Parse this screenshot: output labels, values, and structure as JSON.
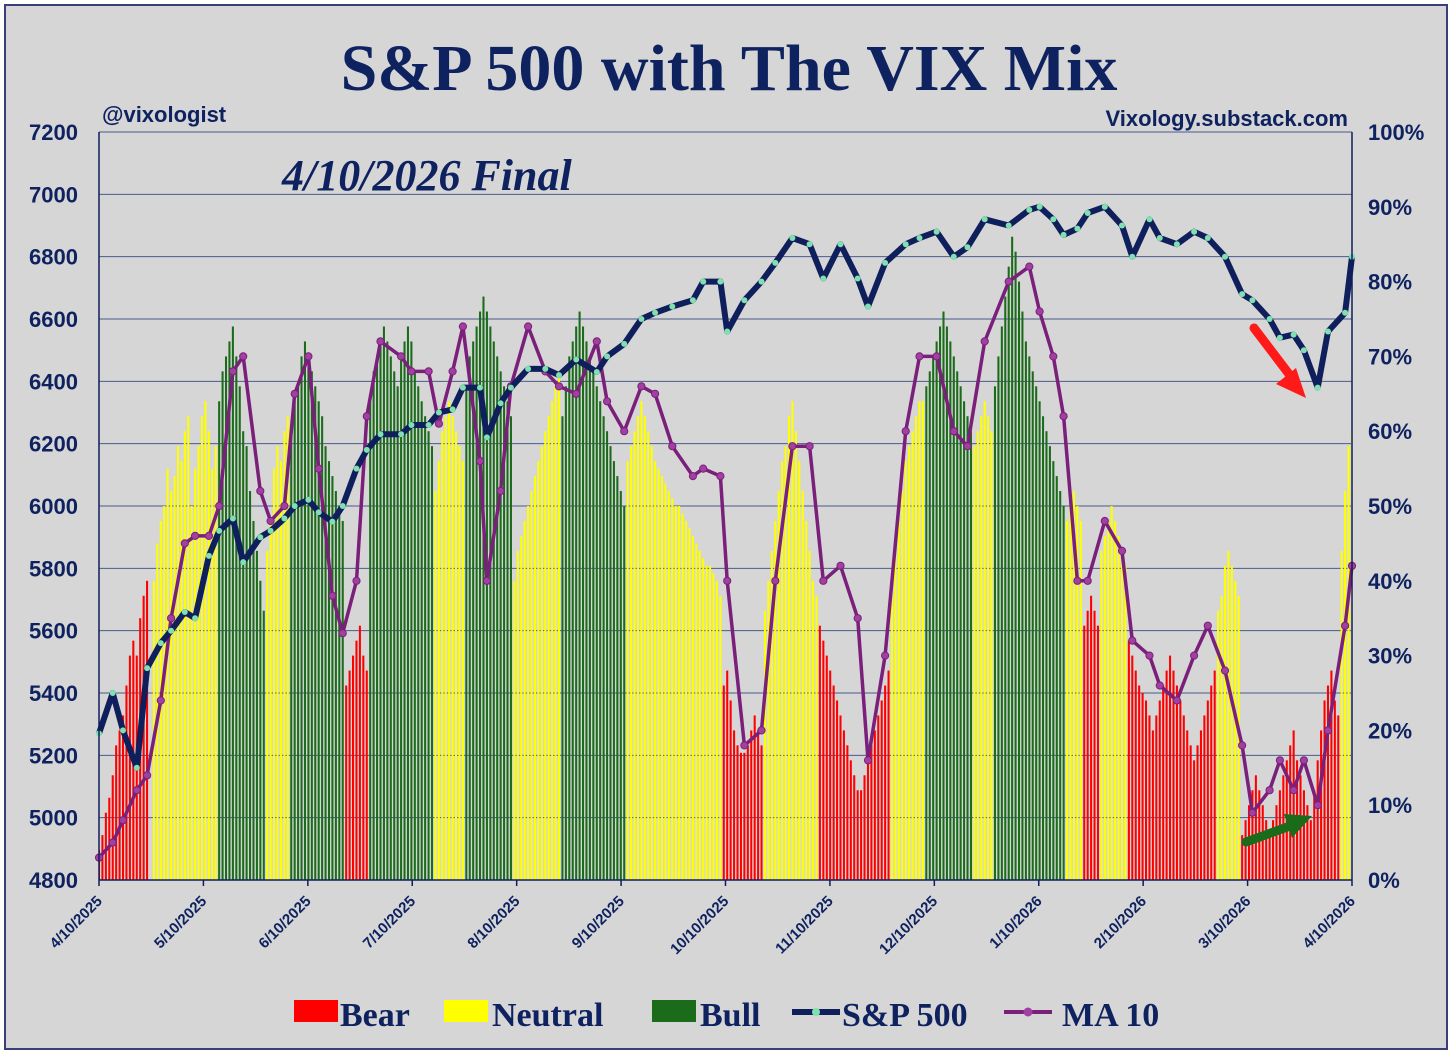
{
  "chart_data": {
    "type": "bar+line",
    "title": "S&P 500 with The VIX Mix",
    "subtitle": "4/10/2026 Final",
    "handle": "@vixologist",
    "website": "Vixology.substack.com",
    "y_left": {
      "ticks": [
        4800,
        5000,
        5200,
        5400,
        5600,
        5800,
        6000,
        6200,
        6400,
        6600,
        6800,
        7000,
        7200
      ],
      "ylim": [
        4800,
        7200
      ]
    },
    "y_right": {
      "ticks": [
        "0%",
        "10%",
        "20%",
        "30%",
        "40%",
        "50%",
        "60%",
        "70%",
        "80%",
        "90%",
        "100%"
      ],
      "ylim": [
        0,
        100
      ]
    },
    "x_ticks": [
      "4/10/2025",
      "5/10/2025",
      "6/10/2025",
      "7/10/2025",
      "8/10/2025",
      "9/10/2025",
      "10/10/2025",
      "11/10/2025",
      "12/10/2025",
      "1/10/2026",
      "2/10/2026",
      "3/10/2026",
      "4/10/2026"
    ],
    "x_range": [
      "2025-04-10",
      "2026-04-10"
    ],
    "grid": true,
    "legend": [
      {
        "name": "Bear",
        "color": "#ff0000",
        "kind": "bar"
      },
      {
        "name": "Neutral",
        "color": "#ffff00",
        "kind": "bar"
      },
      {
        "name": "Bull",
        "color": "#1a6b1a",
        "kind": "bar"
      },
      {
        "name": "S&P 500",
        "color": "#0f1f5c",
        "kind": "line"
      },
      {
        "name": "MA 10",
        "color": "#7a1f7a",
        "kind": "line"
      }
    ],
    "colors": {
      "bear": "#ff0000",
      "neutral": "#ffff00",
      "bull": "#1a6b1a",
      "sp500": "#0f1f5c",
      "sp500_marker": "#7fe0b0",
      "ma10": "#7a1f7a",
      "ma10_marker": "#a040a0",
      "annotation_red": "#ff1a1a",
      "annotation_green": "#1a6b1a"
    },
    "sp500": {
      "dates": [
        "2025-04-10",
        "2025-04-14",
        "2025-04-17",
        "2025-04-21",
        "2025-04-24",
        "2025-04-28",
        "2025-05-01",
        "2025-05-05",
        "2025-05-08",
        "2025-05-12",
        "2025-05-15",
        "2025-05-19",
        "2025-05-22",
        "2025-05-27",
        "2025-05-30",
        "2025-06-03",
        "2025-06-06",
        "2025-06-10",
        "2025-06-13",
        "2025-06-17",
        "2025-06-20",
        "2025-06-24",
        "2025-06-27",
        "2025-07-01",
        "2025-07-07",
        "2025-07-10",
        "2025-07-15",
        "2025-07-18",
        "2025-07-22",
        "2025-07-25",
        "2025-07-30",
        "2025-08-01",
        "2025-08-05",
        "2025-08-08",
        "2025-08-13",
        "2025-08-18",
        "2025-08-22",
        "2025-08-27",
        "2025-09-02",
        "2025-09-05",
        "2025-09-10",
        "2025-09-15",
        "2025-09-19",
        "2025-09-24",
        "2025-09-30",
        "2025-10-03",
        "2025-10-08",
        "2025-10-10",
        "2025-10-15",
        "2025-10-20",
        "2025-10-24",
        "2025-10-29",
        "2025-11-03",
        "2025-11-07",
        "2025-11-12",
        "2025-11-17",
        "2025-11-20",
        "2025-11-25",
        "2025-12-01",
        "2025-12-05",
        "2025-12-10",
        "2025-12-15",
        "2025-12-19",
        "2025-12-24",
        "2025-12-31",
        "2026-01-06",
        "2026-01-09",
        "2026-01-13",
        "2026-01-16",
        "2026-01-20",
        "2026-01-23",
        "2026-01-28",
        "2026-02-02",
        "2026-02-05",
        "2026-02-10",
        "2026-02-13",
        "2026-02-18",
        "2026-02-23",
        "2026-02-27",
        "2026-03-04",
        "2026-03-09",
        "2026-03-12",
        "2026-03-17",
        "2026-03-20",
        "2026-03-24",
        "2026-03-27",
        "2026-03-31",
        "2026-04-03",
        "2026-04-08",
        "2026-04-10"
      ],
      "values": [
        5270,
        5400,
        5280,
        5160,
        5480,
        5560,
        5600,
        5660,
        5640,
        5840,
        5920,
        5960,
        5820,
        5900,
        5920,
        5960,
        6000,
        6020,
        5980,
        5950,
        6000,
        6120,
        6180,
        6230,
        6230,
        6260,
        6260,
        6300,
        6310,
        6380,
        6380,
        6220,
        6330,
        6380,
        6440,
        6440,
        6420,
        6470,
        6430,
        6480,
        6520,
        6600,
        6620,
        6640,
        6660,
        6720,
        6720,
        6560,
        6660,
        6720,
        6780,
        6860,
        6840,
        6730,
        6840,
        6730,
        6640,
        6780,
        6840,
        6860,
        6880,
        6800,
        6830,
        6920,
        6900,
        6950,
        6960,
        6920,
        6870,
        6890,
        6940,
        6960,
        6900,
        6800,
        6920,
        6860,
        6840,
        6880,
        6860,
        6800,
        6680,
        6660,
        6600,
        6540,
        6550,
        6500,
        6380,
        6560,
        6620,
        6800
      ]
    },
    "ma10": {
      "dates": [
        "2025-04-10",
        "2025-04-14",
        "2025-04-17",
        "2025-04-21",
        "2025-04-24",
        "2025-04-28",
        "2025-05-01",
        "2025-05-05",
        "2025-05-08",
        "2025-05-12",
        "2025-05-15",
        "2025-05-19",
        "2025-05-22",
        "2025-05-27",
        "2025-05-30",
        "2025-06-03",
        "2025-06-06",
        "2025-06-10",
        "2025-06-13",
        "2025-06-17",
        "2025-06-20",
        "2025-06-24",
        "2025-06-27",
        "2025-07-01",
        "2025-07-07",
        "2025-07-10",
        "2025-07-15",
        "2025-07-18",
        "2025-07-22",
        "2025-07-25",
        "2025-07-30",
        "2025-08-01",
        "2025-08-05",
        "2025-08-08",
        "2025-08-13",
        "2025-08-18",
        "2025-08-22",
        "2025-08-27",
        "2025-09-02",
        "2025-09-05",
        "2025-09-10",
        "2025-09-15",
        "2025-09-19",
        "2025-09-24",
        "2025-09-30",
        "2025-10-03",
        "2025-10-08",
        "2025-10-10",
        "2025-10-15",
        "2025-10-20",
        "2025-10-24",
        "2025-10-29",
        "2025-11-03",
        "2025-11-07",
        "2025-11-12",
        "2025-11-17",
        "2025-11-20",
        "2025-11-25",
        "2025-12-01",
        "2025-12-05",
        "2025-12-10",
        "2025-12-15",
        "2025-12-19",
        "2025-12-24",
        "2025-12-31",
        "2026-01-06",
        "2026-01-09",
        "2026-01-13",
        "2026-01-16",
        "2026-01-20",
        "2026-01-23",
        "2026-01-28",
        "2026-02-02",
        "2026-02-05",
        "2026-02-10",
        "2026-02-13",
        "2026-02-18",
        "2026-02-23",
        "2026-02-27",
        "2026-03-04",
        "2026-03-09",
        "2026-03-12",
        "2026-03-17",
        "2026-03-20",
        "2026-03-24",
        "2026-03-27",
        "2026-03-31",
        "2026-04-03",
        "2026-04-08",
        "2026-04-10"
      ],
      "values": [
        3,
        5,
        8,
        12,
        14,
        24,
        35,
        45,
        46,
        46,
        50,
        68,
        70,
        52,
        48,
        50,
        65,
        70,
        55,
        38,
        33,
        40,
        62,
        72,
        70,
        68,
        68,
        61,
        68,
        74,
        56,
        40,
        52,
        66,
        74,
        68,
        66,
        65,
        72,
        64,
        60,
        66,
        65,
        58,
        54,
        55,
        54,
        40,
        18,
        20,
        40,
        58,
        58,
        40,
        42,
        35,
        16,
        30,
        60,
        70,
        70,
        60,
        58,
        72,
        80,
        82,
        76,
        70,
        62,
        40,
        40,
        48,
        44,
        32,
        30,
        26,
        24,
        30,
        34,
        28,
        18,
        9,
        12,
        16,
        12,
        16,
        10,
        20,
        34,
        42
      ]
    },
    "regime_bars": {
      "categories": [
        "Bear",
        "Neutral",
        "Bull"
      ],
      "segments": [
        {
          "start": "2025-04-10",
          "end": "2025-04-25",
          "regime": "Bear",
          "values": [
            4,
            6,
            9,
            11,
            14,
            18,
            20,
            22,
            26,
            30,
            32,
            30,
            35,
            38,
            40
          ]
        },
        {
          "start": "2025-04-26",
          "end": "2025-05-14",
          "regime": "Neutral",
          "values": [
            40,
            45,
            48,
            50,
            55,
            52,
            54,
            58,
            56,
            60,
            62,
            50,
            55,
            58,
            62,
            64,
            60,
            55,
            58
          ]
        },
        {
          "start": "2025-05-15",
          "end": "2025-05-28",
          "regime": "Bull",
          "values": [
            64,
            68,
            70,
            72,
            74,
            70,
            66,
            60,
            58,
            52,
            48,
            44,
            40,
            36
          ]
        },
        {
          "start": "2025-05-29",
          "end": "2025-06-04",
          "regime": "Neutral",
          "values": [
            44,
            48,
            55,
            58,
            56,
            60,
            62
          ]
        },
        {
          "start": "2025-06-05",
          "end": "2025-06-20",
          "regime": "Bull",
          "values": [
            60,
            64,
            66,
            70,
            72,
            70,
            68,
            66,
            64,
            62,
            58,
            56,
            54,
            52,
            50,
            48
          ]
        },
        {
          "start": "2025-06-21",
          "end": "2025-06-27",
          "regime": "Bear",
          "values": [
            26,
            28,
            30,
            32,
            34,
            30,
            28
          ]
        },
        {
          "start": "2025-06-28",
          "end": "2025-07-16",
          "regime": "Bull",
          "values": [
            64,
            68,
            70,
            72,
            74,
            72,
            70,
            68,
            66,
            70,
            72,
            74,
            72,
            68,
            66,
            64,
            62,
            60,
            58
          ]
        },
        {
          "start": "2025-07-17",
          "end": "2025-07-25",
          "regime": "Neutral",
          "values": [
            52,
            56,
            60,
            62,
            64,
            62,
            60,
            58,
            56
          ]
        },
        {
          "start": "2025-07-26",
          "end": "2025-08-08",
          "regime": "Bull",
          "values": [
            66,
            70,
            72,
            74,
            76,
            78,
            76,
            74,
            72,
            70,
            68,
            66,
            64,
            62
          ]
        },
        {
          "start": "2025-08-09",
          "end": "2025-08-22",
          "regime": "Neutral",
          "values": [
            40,
            44,
            46,
            48,
            50,
            52,
            54,
            56,
            58,
            60,
            62,
            64,
            66,
            68
          ]
        },
        {
          "start": "2025-08-23",
          "end": "2025-09-10",
          "regime": "Bull",
          "values": [
            62,
            66,
            70,
            72,
            74,
            76,
            74,
            72,
            70,
            68,
            66,
            64,
            62,
            60,
            58,
            56,
            54,
            52,
            50
          ]
        },
        {
          "start": "2025-09-11",
          "end": "2025-10-08",
          "regime": "Neutral",
          "values": [
            56,
            58,
            60,
            62,
            64,
            62,
            60,
            58,
            56,
            55,
            54,
            53,
            52,
            51,
            50,
            50,
            49,
            48,
            47,
            46,
            45,
            44,
            43,
            42,
            42,
            41,
            40,
            38
          ]
        },
        {
          "start": "2025-10-09",
          "end": "2025-10-20",
          "regime": "Bear",
          "values": [
            26,
            28,
            24,
            20,
            18,
            17,
            17,
            18,
            20,
            22,
            20,
            18
          ]
        },
        {
          "start": "2025-10-21",
          "end": "2025-11-05",
          "regime": "Neutral",
          "values": [
            36,
            40,
            44,
            48,
            52,
            56,
            58,
            62,
            64,
            60,
            56,
            52,
            48,
            44,
            40,
            38
          ]
        },
        {
          "start": "2025-11-06",
          "end": "2025-11-26",
          "regime": "Bear",
          "values": [
            34,
            32,
            30,
            28,
            26,
            24,
            22,
            20,
            18,
            16,
            14,
            12,
            12,
            14,
            16,
            18,
            20,
            22,
            24,
            26,
            28
          ]
        },
        {
          "start": "2025-11-27",
          "end": "2025-12-06",
          "regime": "Neutral",
          "values": [
            40,
            44,
            48,
            52,
            56,
            58,
            60,
            62,
            64,
            64
          ]
        },
        {
          "start": "2025-12-07",
          "end": "2025-12-20",
          "regime": "Bull",
          "values": [
            66,
            68,
            70,
            72,
            74,
            76,
            74,
            72,
            70,
            68,
            66,
            64,
            62,
            60
          ]
        },
        {
          "start": "2025-12-21",
          "end": "2025-12-26",
          "regime": "Neutral",
          "values": [
            58,
            60,
            62,
            64,
            62,
            60
          ]
        },
        {
          "start": "2025-12-27",
          "end": "2026-01-16",
          "regime": "Bull",
          "values": [
            66,
            70,
            74,
            78,
            82,
            86,
            84,
            80,
            76,
            72,
            70,
            68,
            66,
            64,
            62,
            60,
            58,
            56,
            54,
            52,
            50
          ]
        },
        {
          "start": "2026-01-17",
          "end": "2026-01-21",
          "regime": "Neutral",
          "values": [
            48,
            50,
            52,
            50,
            48
          ]
        },
        {
          "start": "2026-01-22",
          "end": "2026-01-26",
          "regime": "Bear",
          "values": [
            34,
            36,
            38,
            36,
            34
          ]
        },
        {
          "start": "2026-01-27",
          "end": "2026-02-03",
          "regime": "Neutral",
          "values": [
            44,
            46,
            48,
            50,
            48,
            46,
            44,
            42
          ]
        },
        {
          "start": "2026-02-04",
          "end": "2026-03-01",
          "regime": "Bear",
          "values": [
            32,
            30,
            28,
            26,
            25,
            24,
            22,
            20,
            22,
            24,
            26,
            28,
            30,
            28,
            26,
            24,
            22,
            20,
            18,
            16,
            18,
            20,
            22,
            24,
            26,
            28
          ]
        },
        {
          "start": "2026-03-02",
          "end": "2026-03-08",
          "regime": "Neutral",
          "values": [
            36,
            38,
            42,
            44,
            42,
            40,
            38
          ]
        },
        {
          "start": "2026-03-09",
          "end": "2026-04-06",
          "regime": "Bear",
          "values": [
            6,
            8,
            10,
            12,
            14,
            12,
            10,
            8,
            6,
            8,
            10,
            12,
            14,
            16,
            18,
            20,
            16,
            14,
            12,
            10,
            8,
            12,
            16,
            20,
            24,
            26,
            28,
            24,
            22
          ]
        },
        {
          "start": "2026-04-07",
          "end": "2026-04-10",
          "regime": "Neutral",
          "values": [
            44,
            52,
            58,
            60
          ]
        }
      ]
    }
  }
}
